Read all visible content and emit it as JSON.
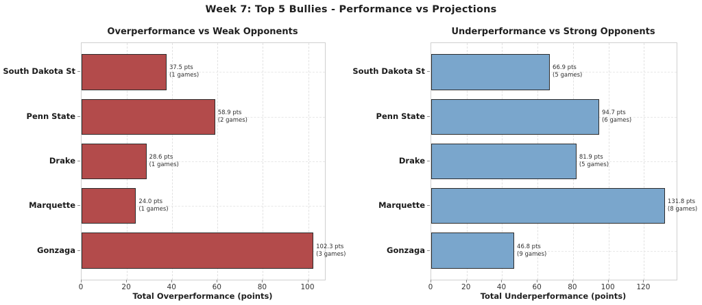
{
  "figure": {
    "title": "Week 7: Top 5 Bullies - Performance vs Projections",
    "background": "#ffffff"
  },
  "chart_data": [
    {
      "type": "bar",
      "orientation": "horizontal",
      "title": "Overperformance vs Weak Opponents",
      "xlabel": "Total Overperformance (points)",
      "categories": [
        "South Dakota St",
        "Penn State",
        "Drake",
        "Marquette",
        "Gonzaga"
      ],
      "values": [
        37.5,
        58.9,
        28.6,
        24.0,
        102.3
      ],
      "bar_labels_pts": [
        "37.5 pts",
        "58.9 pts",
        "28.6 pts",
        "24.0 pts",
        "102.3 pts"
      ],
      "bar_labels_games": [
        "(1 games)",
        "(2 games)",
        "(1 games)",
        "(1 games)",
        "(3 games)"
      ],
      "xticks": [
        0,
        20,
        40,
        60,
        80,
        100
      ],
      "xlim": [
        0,
        107.4
      ],
      "bar_color": "#b34b4b",
      "bar_edge_color": "#2b2b2b",
      "grid": true,
      "grid_style": "dashed",
      "legend": "none"
    },
    {
      "type": "bar",
      "orientation": "horizontal",
      "title": "Underperformance vs Strong Opponents",
      "xlabel": "Total Underperformance (points)",
      "categories": [
        "South Dakota St",
        "Penn State",
        "Drake",
        "Marquette",
        "Gonzaga"
      ],
      "values": [
        66.9,
        94.7,
        81.9,
        131.8,
        46.8
      ],
      "bar_labels_pts": [
        "66.9 pts",
        "94.7 pts",
        "81.9 pts",
        "131.8 pts",
        "46.8 pts"
      ],
      "bar_labels_games": [
        "(5 games)",
        "(6 games)",
        "(5 games)",
        "(8 games)",
        "(9 games)"
      ],
      "xticks": [
        0,
        20,
        40,
        60,
        80,
        100,
        120
      ],
      "xlim": [
        0,
        138.4
      ],
      "bar_color": "#7aa6cc",
      "bar_edge_color": "#2b2b2b",
      "grid": true,
      "grid_style": "dashed",
      "legend": "none"
    }
  ]
}
